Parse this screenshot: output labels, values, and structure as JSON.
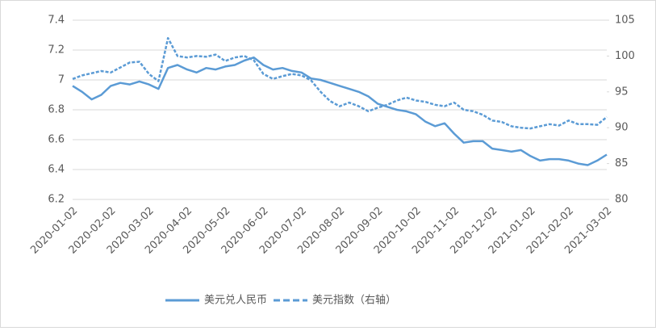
{
  "chart_data": {
    "type": "line",
    "categories": [
      "2020-01-02",
      null,
      null,
      null,
      "2020-02-02",
      null,
      null,
      null,
      "2020-03-02",
      null,
      null,
      null,
      "2020-04-02",
      null,
      null,
      null,
      "2020-05-02",
      null,
      null,
      null,
      "2020-06-02",
      null,
      null,
      null,
      "2020-07-02",
      null,
      null,
      null,
      "2020-08-02",
      null,
      null,
      null,
      "2020-09-02",
      null,
      null,
      null,
      "2020-10-02",
      null,
      null,
      null,
      "2020-11-02",
      null,
      null,
      null,
      "2020-12-02",
      null,
      null,
      null,
      "2021-01-02",
      null,
      null,
      null,
      "2021-02-02",
      null,
      null,
      null,
      "2021-03-02"
    ],
    "series": [
      {
        "name": "美元兑人民币",
        "color": "#5b9bd5",
        "dash": false,
        "axis": "y",
        "values": [
          6.96,
          6.92,
          6.87,
          6.9,
          6.96,
          6.98,
          6.97,
          6.99,
          6.97,
          6.94,
          7.08,
          7.1,
          7.07,
          7.05,
          7.08,
          7.07,
          7.09,
          7.1,
          7.13,
          7.15,
          7.1,
          7.07,
          7.08,
          7.06,
          7.05,
          7.01,
          7.0,
          6.98,
          6.96,
          6.94,
          6.92,
          6.89,
          6.84,
          6.82,
          6.8,
          6.79,
          6.77,
          6.72,
          6.69,
          6.71,
          6.64,
          6.58,
          6.59,
          6.59,
          6.54,
          6.53,
          6.52,
          6.53,
          6.49,
          6.46,
          6.47,
          6.47,
          6.46,
          6.44,
          6.43,
          6.46,
          6.5
        ]
      },
      {
        "name": "美元指数（右轴）",
        "color": "#5b9bd5",
        "dash": true,
        "axis": "y2",
        "values": [
          96.8,
          97.3,
          97.6,
          97.9,
          97.7,
          98.4,
          99.1,
          99.2,
          97.5,
          96.5,
          102.5,
          100.0,
          99.8,
          100.0,
          99.9,
          100.2,
          99.3,
          99.8,
          100.0,
          99.4,
          97.5,
          96.8,
          97.2,
          97.5,
          97.3,
          96.6,
          95.0,
          93.7,
          93.0,
          93.5,
          93.0,
          92.3,
          92.8,
          93.2,
          93.8,
          94.2,
          93.8,
          93.6,
          93.2,
          93.0,
          93.5,
          92.5,
          92.3,
          91.8,
          91.0,
          90.8,
          90.2,
          90.0,
          89.9,
          90.2,
          90.5,
          90.3,
          91.0,
          90.5,
          90.5,
          90.4,
          91.5
        ]
      }
    ],
    "ylim": [
      6.2,
      7.4
    ],
    "yticks": [
      6.2,
      6.4,
      6.6,
      6.8,
      7,
      7.2,
      7.4
    ],
    "y2lim": [
      80,
      105
    ],
    "y2ticks": [
      80,
      85,
      90,
      95,
      100,
      105
    ],
    "grid": true,
    "legend": "bottom"
  }
}
